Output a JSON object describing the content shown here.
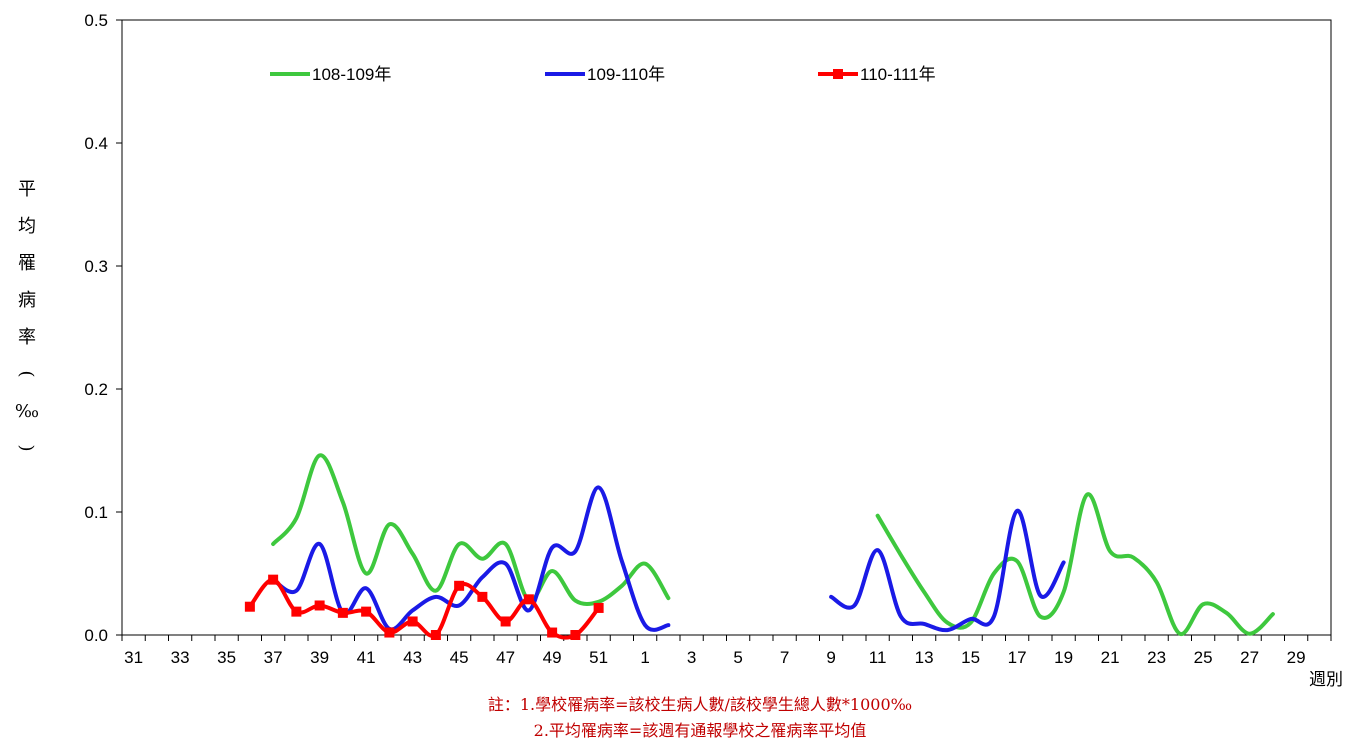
{
  "chart_data": {
    "type": "line",
    "title": "",
    "xlabel": "週別",
    "ylabel": "平均罹病率(‰)",
    "ylim": [
      0,
      0.5
    ],
    "y_ticks": [
      "0.0",
      "0.1",
      "0.2",
      "0.3",
      "0.4",
      "0.5"
    ],
    "x_categories": [
      "31",
      "32",
      "33",
      "34",
      "35",
      "36",
      "37",
      "38",
      "39",
      "40",
      "41",
      "42",
      "43",
      "44",
      "45",
      "46",
      "47",
      "48",
      "49",
      "50",
      "51",
      "52",
      "1",
      "2",
      "3",
      "4",
      "5",
      "6",
      "7",
      "8",
      "9",
      "10",
      "11",
      "12",
      "13",
      "14",
      "15",
      "16",
      "17",
      "18",
      "19",
      "20",
      "21",
      "22",
      "23",
      "24",
      "25",
      "26",
      "27",
      "28",
      "29",
      "30"
    ],
    "x_tick_labels": [
      "31",
      "33",
      "35",
      "37",
      "39",
      "41",
      "43",
      "45",
      "47",
      "49",
      "51",
      "1",
      "3",
      "5",
      "7",
      "9",
      "11",
      "13",
      "15",
      "17",
      "19",
      "21",
      "23",
      "25",
      "27",
      "29"
    ],
    "grid": false,
    "legend_position": "top",
    "series": [
      {
        "name": "108-109年",
        "color": "#3ec83e",
        "marker": "none",
        "points": [
          [
            "37",
            0.074
          ],
          [
            "38",
            0.095
          ],
          [
            "39",
            0.146
          ],
          [
            "40",
            0.108
          ],
          [
            "41",
            0.05
          ],
          [
            "42",
            0.09
          ],
          [
            "43",
            0.066
          ],
          [
            "44",
            0.036
          ],
          [
            "45",
            0.074
          ],
          [
            "46",
            0.062
          ],
          [
            "47",
            0.074
          ],
          [
            "48",
            0.028
          ],
          [
            "49",
            0.052
          ],
          [
            "50",
            0.028
          ],
          [
            "51",
            0.027
          ],
          [
            "52",
            0.04
          ],
          [
            "1",
            0.058
          ],
          [
            "2",
            0.03
          ],
          null,
          [
            "11",
            0.097
          ],
          [
            "12",
            0.065
          ],
          [
            "13",
            0.035
          ],
          [
            "14",
            0.01
          ],
          [
            "15",
            0.01
          ],
          [
            "16",
            0.05
          ],
          [
            "17",
            0.06
          ],
          [
            "18",
            0.015
          ],
          [
            "19",
            0.035
          ],
          [
            "20",
            0.114
          ],
          [
            "21",
            0.068
          ],
          [
            "22",
            0.063
          ],
          [
            "23",
            0.043
          ],
          [
            "24",
            0.001
          ],
          [
            "25",
            0.025
          ],
          [
            "26",
            0.018
          ],
          [
            "27",
            0.001
          ],
          [
            "28",
            0.017
          ]
        ]
      },
      {
        "name": "109-110年",
        "color": "#1a1ae6",
        "marker": "none",
        "points": [
          [
            "37",
            0.045
          ],
          [
            "38",
            0.036
          ],
          [
            "39",
            0.074
          ],
          [
            "40",
            0.018
          ],
          [
            "41",
            0.038
          ],
          [
            "42",
            0.005
          ],
          [
            "43",
            0.02
          ],
          [
            "44",
            0.031
          ],
          [
            "45",
            0.024
          ],
          [
            "46",
            0.047
          ],
          [
            "47",
            0.058
          ],
          [
            "48",
            0.02
          ],
          [
            "49",
            0.071
          ],
          [
            "50",
            0.068
          ],
          [
            "51",
            0.12
          ],
          [
            "52",
            0.06
          ],
          [
            "1",
            0.008
          ],
          [
            "2",
            0.008
          ],
          null,
          [
            "9",
            0.031
          ],
          [
            "10",
            0.024
          ],
          [
            "11",
            0.069
          ],
          [
            "12",
            0.015
          ],
          [
            "13",
            0.009
          ],
          [
            "14",
            0.004
          ],
          [
            "15",
            0.013
          ],
          [
            "16",
            0.015
          ],
          [
            "17",
            0.101
          ],
          [
            "18",
            0.032
          ],
          [
            "19",
            0.059
          ]
        ]
      },
      {
        "name": "110-111年",
        "color": "#ff0000",
        "marker": "square",
        "points": [
          [
            "36",
            0.023
          ],
          [
            "37",
            0.045
          ],
          [
            "38",
            0.019
          ],
          [
            "39",
            0.024
          ],
          [
            "40",
            0.018
          ],
          [
            "41",
            0.019
          ],
          [
            "42",
            0.002
          ],
          [
            "43",
            0.011
          ],
          [
            "44",
            0.0
          ],
          [
            "45",
            0.04
          ],
          [
            "46",
            0.031
          ],
          [
            "47",
            0.011
          ],
          [
            "48",
            0.029
          ],
          [
            "49",
            0.002
          ],
          [
            "50",
            0.0
          ],
          [
            "51",
            0.022
          ]
        ]
      }
    ]
  },
  "notes": {
    "line1": "註：1.學校罹病率=該校生病人數/該校學生總人數*1000‰",
    "line2": "2.平均罹病率=該週有通報學校之罹病率平均值"
  }
}
